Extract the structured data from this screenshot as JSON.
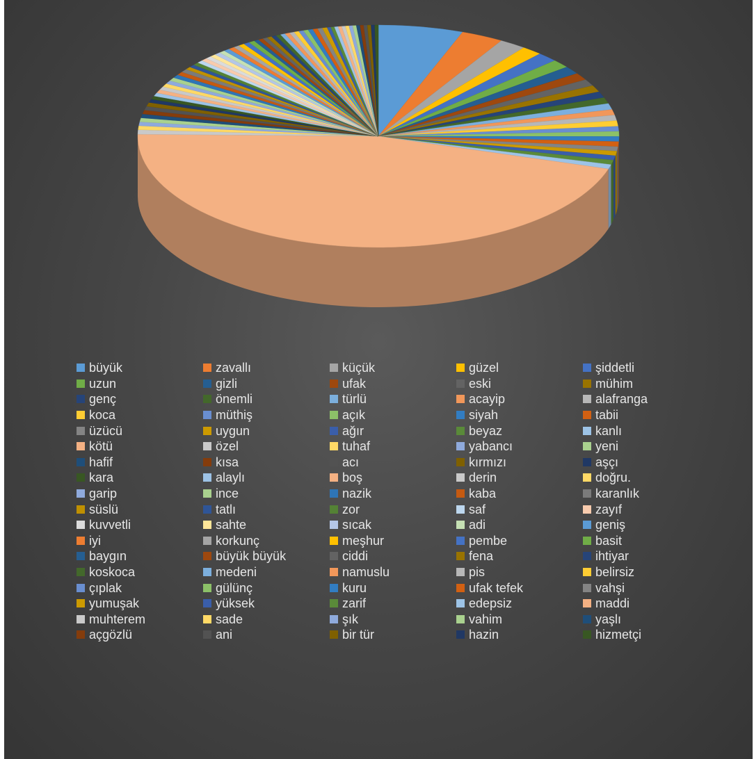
{
  "chart_data": {
    "type": "pie",
    "title": "",
    "style": "3d",
    "legend_position": "bottom",
    "categories": [
      "büyük",
      "zavallı",
      "küçük",
      "güzel",
      "şiddetli",
      "uzun",
      "gizli",
      "ufak",
      "eski",
      "mühim",
      "genç",
      "önemli",
      "türlü",
      "acayip",
      "alafranga",
      "koca",
      "müthiş",
      "açık",
      "siyah",
      "tabii",
      "üzücü",
      "uygun",
      "ağır",
      "beyaz",
      "kanlı",
      "kötü",
      "özel",
      "tuhaf",
      "yabancı",
      "yeni",
      "hafif",
      "kısa",
      "acı",
      "kırmızı",
      "aşçı",
      "kara",
      "alaylı",
      "boş",
      "derin",
      "doğru.",
      "garip",
      "ince",
      "nazik",
      "kaba",
      "karanlık",
      "süslü",
      "tatlı",
      "zor",
      "saf",
      "zayıf",
      "kuvvetli",
      "sahte",
      "sıcak",
      "adi",
      "geniş",
      "iyi",
      "korkunç",
      "meşhur",
      "pembe",
      "basit",
      "baygın",
      "büyük büyük",
      "ciddi",
      "fena",
      "ihtiyar",
      "koskoca",
      "medeni",
      "namuslu",
      "pis",
      "belirsiz",
      "çıplak",
      "gülünç",
      "kuru",
      "ufak tefek",
      "vahşi",
      "yumuşak",
      "yüksek",
      "zarif",
      "edepsiz",
      "maddi",
      "muhterem",
      "sade",
      "şık",
      "vahim",
      "yaşlı",
      "açgözlü",
      "ani",
      "bir tür",
      "hazin",
      "hizmetçi"
    ],
    "values": [
      70,
      35,
      22,
      17,
      17,
      15,
      14,
      13,
      12,
      12,
      11,
      11,
      11,
      10,
      10,
      10,
      9,
      9,
      9,
      9,
      8,
      8,
      8,
      8,
      8,
      560,
      8,
      7,
      7,
      7,
      7,
      7,
      7,
      7,
      6,
      6,
      6,
      6,
      6,
      6,
      6,
      6,
      6,
      6,
      6,
      5,
      5,
      5,
      5,
      5,
      5,
      5,
      5,
      5,
      5,
      5,
      5,
      5,
      5,
      5,
      4,
      4,
      4,
      4,
      4,
      4,
      4,
      4,
      4,
      4,
      4,
      4,
      4,
      4,
      4,
      4,
      3,
      3,
      3,
      3,
      3,
      3,
      3,
      3,
      3,
      3,
      3,
      3,
      3,
      3
    ],
    "colors": [
      "#5B9BD5",
      "#ED7D31",
      "#A5A5A5",
      "#FFC000",
      "#4472C4",
      "#70AD47",
      "#255E91",
      "#9E480E",
      "#636363",
      "#997300",
      "#264478",
      "#43682B",
      "#7CAFDD",
      "#F1975A",
      "#B7B7B7",
      "#FFCD33",
      "#698ED0",
      "#8CC168",
      "#327DC2",
      "#D26012",
      "#848484",
      "#CC9A00",
      "#3A5EAA",
      "#5A8A39",
      "#9DC3E6",
      "#F4B183",
      "#C9C9C9",
      "#FFD966",
      "#8FAADC",
      "#A9D18E",
      "#1F4E79",
      "#843C0C",
      "#525252",
      "#7F6000",
      "#203864",
      "#385723",
      "#9DC3E6",
      "#F4B183",
      "#C9C9C9",
      "#FFD966",
      "#8FAADC",
      "#A9D18E",
      "#2E75B6",
      "#C55A11",
      "#7B7B7B",
      "#BF9000",
      "#2F5597",
      "#548235",
      "#BDD7EE",
      "#F8CBAD",
      "#DBDBDB",
      "#FFE699",
      "#B4C7E7",
      "#C5E0B4",
      "#5B9BD5",
      "#ED7D31",
      "#A5A5A5",
      "#FFC000",
      "#4472C4",
      "#70AD47",
      "#255E91",
      "#9E480E",
      "#636363",
      "#997300",
      "#264478",
      "#43682B",
      "#7CAFDD",
      "#F1975A",
      "#B7B7B7",
      "#FFCD33",
      "#698ED0",
      "#8CC168",
      "#327DC2",
      "#D26012",
      "#848484",
      "#CC9A00",
      "#3A5EAA",
      "#5A8A39",
      "#9DC3E6",
      "#F4B183",
      "#C9C9C9",
      "#FFD966",
      "#8FAADC",
      "#A9D18E",
      "#1F4E79",
      "#843C0C",
      "#525252",
      "#7F6000",
      "#203864",
      "#385723"
    ]
  }
}
